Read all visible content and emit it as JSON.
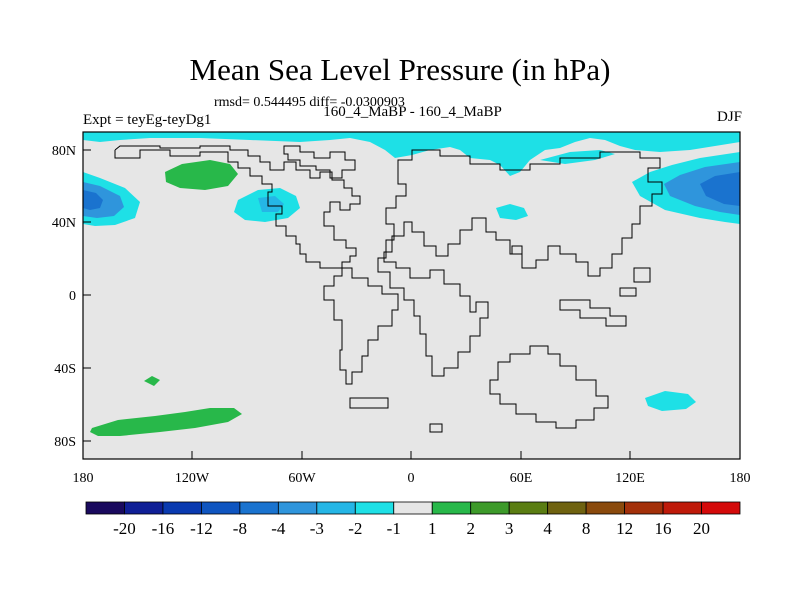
{
  "title": "Mean Sea Level Pressure (in hPa)",
  "stats": "rmsd= 0.544495 diff= -0.0300903",
  "experiment": "Expt = teyEg-teyDg1",
  "runs": "160_4_MaBP - 160_4_MaBP",
  "season": "DJF",
  "axes": {
    "x_ticks": [
      "180",
      "120W",
      "60W",
      "0",
      "60E",
      "120E",
      "180"
    ],
    "y_ticks": [
      "80N",
      "40N",
      "0",
      "40S",
      "80S"
    ]
  },
  "colorbar": {
    "labels": [
      "-20",
      "-16",
      "-12",
      "-8",
      "-4",
      "-3",
      "-2",
      "-1",
      "1",
      "2",
      "3",
      "4",
      "8",
      "12",
      "16",
      "20"
    ],
    "colors": [
      "#1a0a5e",
      "#101f96",
      "#0a3ab0",
      "#0f55c0",
      "#1a73cf",
      "#2f95dc",
      "#25b6e6",
      "#1ee0e6",
      "#e6e6e6",
      "#28b84a",
      "#3d9a2a",
      "#5a7d12",
      "#6f6210",
      "#8a4a0c",
      "#a3300a",
      "#bf1a0a",
      "#d40a0a"
    ]
  },
  "chart_data": {
    "type": "heatmap",
    "title": "Mean Sea Level Pressure (in hPa)",
    "variable": "mean sea level pressure difference",
    "units": "hPa",
    "x_range_deg": [
      -180,
      180
    ],
    "y_range_deg": [
      -90,
      90
    ],
    "background_range": "-1 to 1",
    "anomaly_regions": [
      {
        "name": "North Pacific (east of dateline)",
        "lon": -170,
        "lat": 52,
        "value_range": "-4 to -2",
        "sign": "negative"
      },
      {
        "name": "North Pacific (west of dateline)",
        "lon": 160,
        "lat": 52,
        "value_range": "-4 to -2",
        "sign": "negative"
      },
      {
        "name": "Arctic margin",
        "lon": 60,
        "lat": 80,
        "value_range": "-2 to -1",
        "sign": "negative"
      },
      {
        "name": "North Atlantic (west)",
        "lon": -70,
        "lat": 50,
        "value_range": "-2 to -1",
        "sign": "negative"
      },
      {
        "name": "Central Asia",
        "lon": 50,
        "lat": 47,
        "value_range": "-2 to -1",
        "sign": "negative"
      },
      {
        "name": "Southern Ocean (south of Australia)",
        "lon": 143,
        "lat": -57,
        "value_range": "-2 to -1",
        "sign": "negative"
      },
      {
        "name": "Alaska / Bering",
        "lon": -115,
        "lat": 67,
        "value_range": "1 to 2",
        "sign": "positive"
      },
      {
        "name": "South Pacific",
        "lon": -130,
        "lat": -75,
        "value_range": "1 to 2",
        "sign": "positive"
      },
      {
        "name": "Small South Pacific cell",
        "lon": -140,
        "lat": -48,
        "value_range": "1 to 2",
        "sign": "positive"
      }
    ]
  }
}
